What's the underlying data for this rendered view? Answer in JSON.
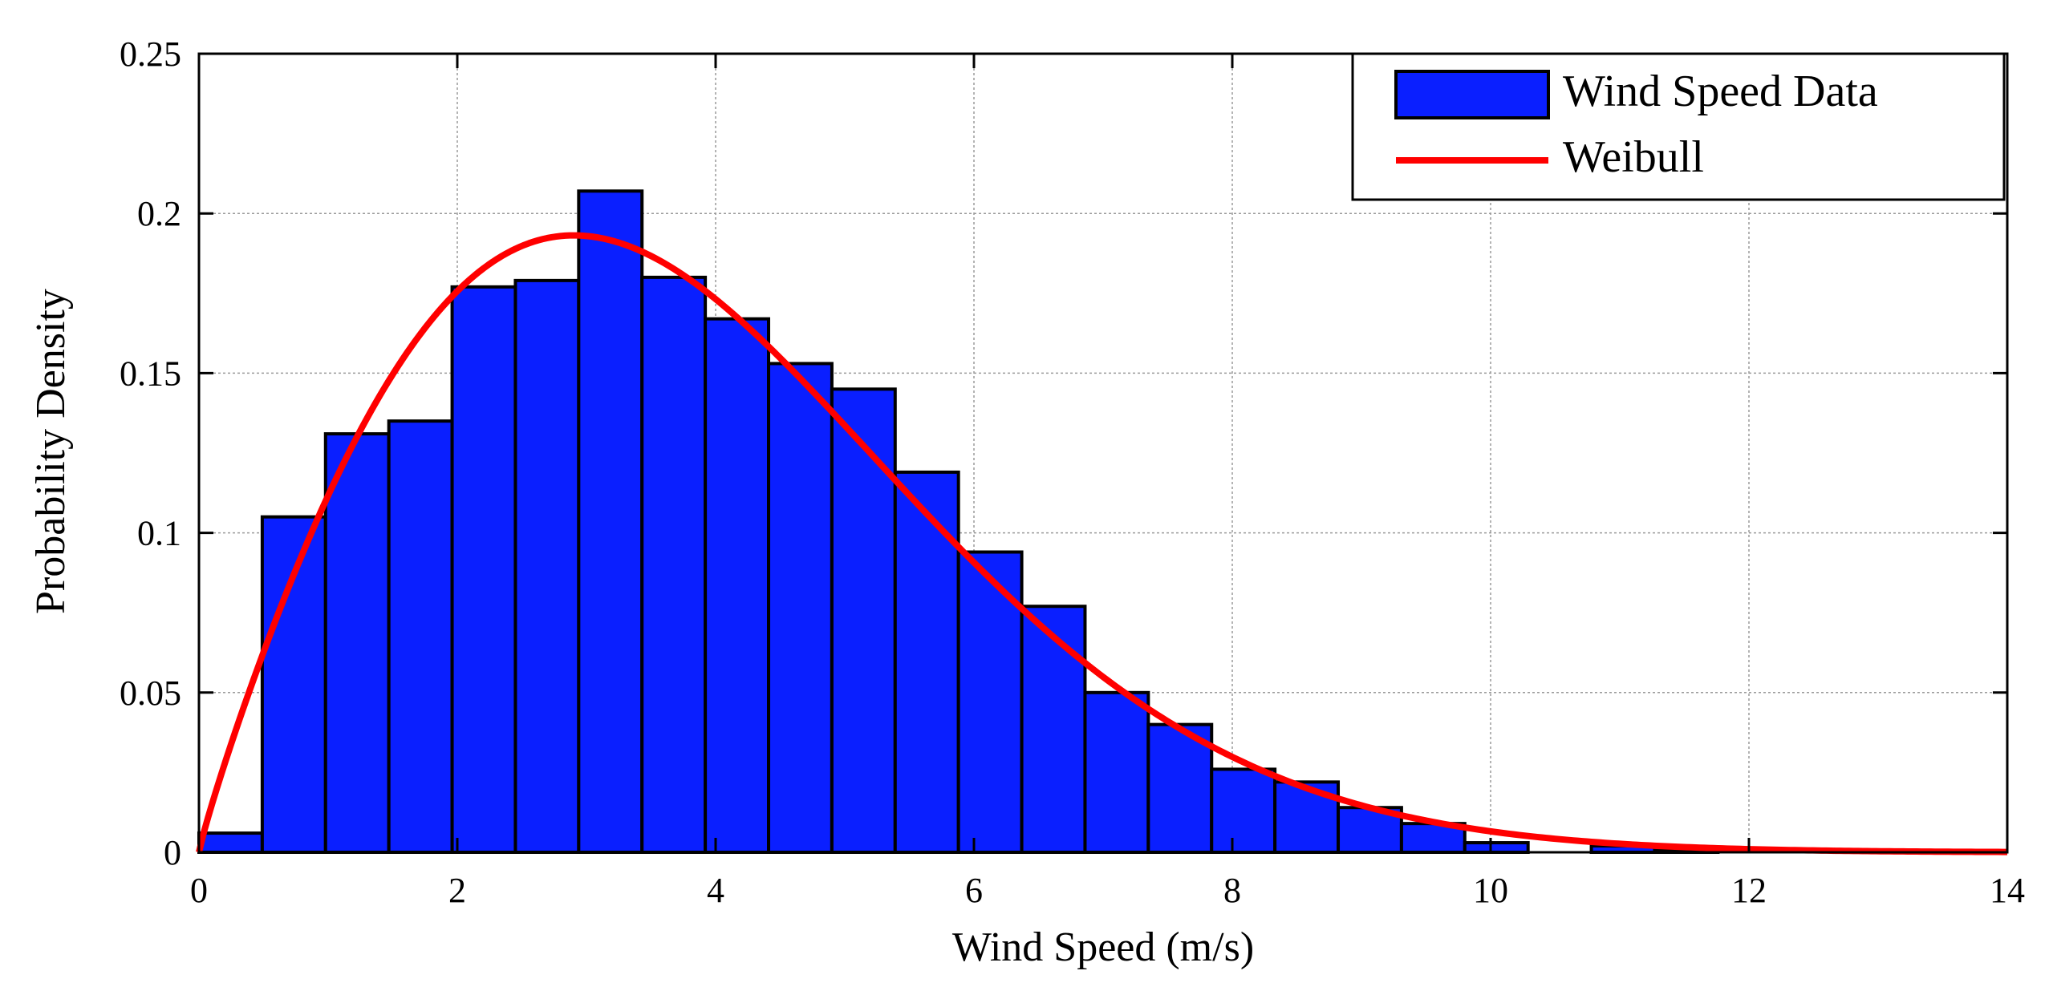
{
  "chart_data": {
    "type": "bar",
    "xlabel": "Wind Speed (m/s)",
    "ylabel": "Probability Density",
    "xlim": [
      0,
      14
    ],
    "ylim": [
      0,
      0.25
    ],
    "grid": true,
    "legend_position": "top-right",
    "x_ticks": [
      "0",
      "2",
      "4",
      "6",
      "8",
      "10",
      "12",
      "14"
    ],
    "y_ticks": [
      "0",
      "0.05",
      "0.1",
      "0.15",
      "0.2",
      "0.25"
    ],
    "x_tick_values": [
      0,
      2,
      4,
      6,
      8,
      10,
      12,
      14
    ],
    "y_tick_values": [
      0,
      0.05,
      0.1,
      0.15,
      0.2,
      0.25
    ],
    "colors": {
      "bars": "#0a1fff",
      "weibull": "#ff0000"
    },
    "series": [
      {
        "name": "Wind Speed Data",
        "type": "histogram",
        "bin_edges": [
          0,
          0.49,
          0.98,
          1.47,
          1.96,
          2.45,
          2.94,
          3.43,
          3.92,
          4.41,
          4.9,
          5.39,
          5.88,
          6.37,
          6.86,
          7.35,
          7.84,
          8.33,
          8.82,
          9.31,
          9.8,
          10.29,
          10.78,
          11.27,
          11.76,
          12.25,
          12.74,
          13.23,
          13.72,
          14.21
        ],
        "values": [
          0.006,
          0.105,
          0.131,
          0.135,
          0.177,
          0.179,
          0.207,
          0.18,
          0.167,
          0.153,
          0.145,
          0.119,
          0.094,
          0.077,
          0.05,
          0.04,
          0.026,
          0.022,
          0.014,
          0.009,
          0.003,
          0.0,
          0.002,
          0.001,
          0.0,
          0.0,
          0.0,
          0.0,
          0.0
        ]
      },
      {
        "name": "Weibull",
        "type": "line",
        "shape_k": 1.9,
        "scale_c": 4.3
      }
    ]
  }
}
